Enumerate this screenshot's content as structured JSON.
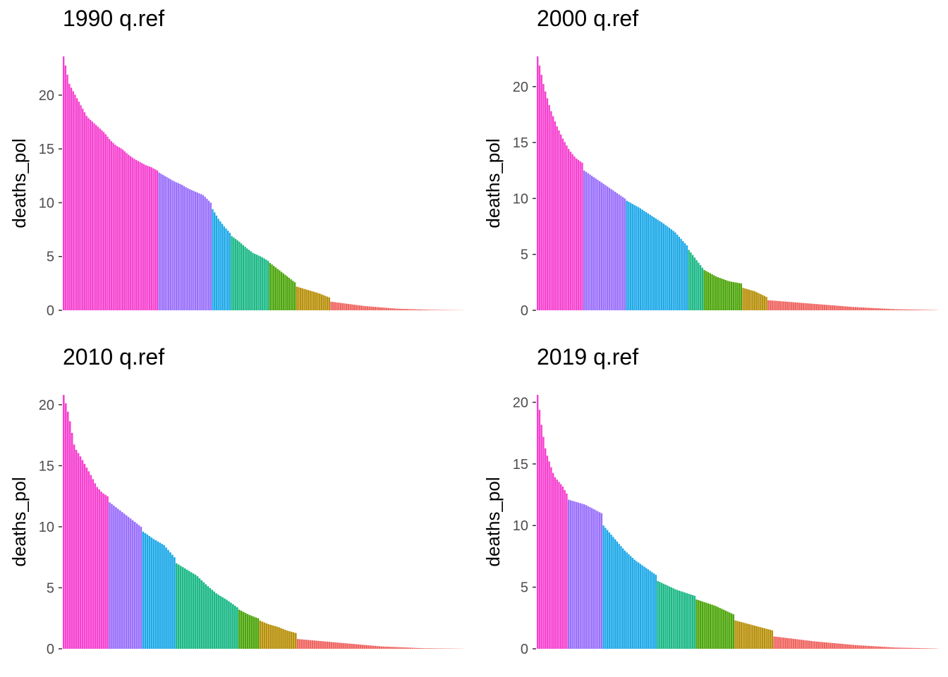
{
  "chart_data": [
    {
      "type": "bar",
      "title": "1990 q.ref",
      "ylabel": "deaths_pol",
      "ylim": [
        0,
        23.6
      ],
      "yticks": [
        0,
        5,
        10,
        15,
        20
      ],
      "grid": false,
      "legend": "none",
      "group_colors": [
        "#F641D0",
        "#9A70FC",
        "#1EA9E8",
        "#1BB886",
        "#4CA50A",
        "#B8900A",
        "#EF6460"
      ],
      "anchors": [
        {
          "group": 0,
          "values": [
            23.6,
            21.0,
            20.0,
            19.0,
            18.0,
            17.5,
            17.0,
            16.5,
            15.8,
            15.3,
            15.0,
            14.5,
            14.1,
            13.8,
            13.5,
            13.3,
            13.0
          ]
        },
        {
          "group": 1,
          "values": [
            12.8,
            12.4,
            12.0,
            11.7,
            11.3,
            11.0,
            10.7,
            10.0
          ]
        },
        {
          "group": 2,
          "values": [
            9.4,
            8.5,
            7.8,
            7.2
          ]
        },
        {
          "group": 3,
          "values": [
            6.9,
            6.4,
            5.8,
            5.3,
            5.0,
            4.6
          ]
        },
        {
          "group": 4,
          "values": [
            4.4,
            3.8,
            3.2,
            2.6
          ]
        },
        {
          "group": 5,
          "values": [
            2.2,
            1.9,
            1.6,
            1.2
          ]
        },
        {
          "group": 6,
          "values": [
            0.8,
            0.4,
            0.15,
            0.05,
            0.01
          ]
        }
      ],
      "group_counts": [
        50,
        28,
        10,
        20,
        14,
        18,
        70
      ]
    },
    {
      "type": "bar",
      "title": "2000 q.ref",
      "ylabel": "deaths_pol",
      "ylim": [
        0,
        22.7
      ],
      "yticks": [
        0,
        5,
        10,
        15,
        20
      ],
      "grid": false,
      "legend": "none",
      "group_colors": [
        "#F641D0",
        "#9A70FC",
        "#1EA9E8",
        "#1BB886",
        "#4CA50A",
        "#B8900A",
        "#EF6460"
      ],
      "anchors": [
        {
          "group": 0,
          "values": [
            22.7,
            20.0,
            18.0,
            16.5,
            15.3,
            14.3,
            13.6,
            13.2
          ]
        },
        {
          "group": 1,
          "values": [
            12.5,
            12.0,
            11.5,
            11.0,
            10.5,
            10.0
          ]
        },
        {
          "group": 2,
          "values": [
            9.8,
            9.2,
            8.5,
            7.8,
            7.0,
            5.8
          ]
        },
        {
          "group": 3,
          "values": [
            5.4,
            4.6,
            3.8
          ]
        },
        {
          "group": 4,
          "values": [
            3.6,
            3.0,
            2.6,
            2.4
          ]
        },
        {
          "group": 5,
          "values": [
            2.0,
            1.7,
            1.2
          ]
        },
        {
          "group": 6,
          "values": [
            0.9,
            0.6,
            0.3,
            0.1,
            0.02
          ]
        }
      ],
      "group_counts": [
        24,
        22,
        32,
        8,
        20,
        13,
        88
      ]
    },
    {
      "type": "bar",
      "title": "2010 q.ref",
      "ylabel": "deaths_pol",
      "ylim": [
        0,
        20.8
      ],
      "yticks": [
        0,
        5,
        10,
        15,
        20
      ],
      "grid": false,
      "legend": "none",
      "group_colors": [
        "#F641D0",
        "#9A70FC",
        "#1EA9E8",
        "#1BB886",
        "#4CA50A",
        "#B8900A",
        "#EF6460"
      ],
      "anchors": [
        {
          "group": 0,
          "values": [
            20.8,
            19.0,
            16.5,
            15.8,
            15.0,
            14.2,
            13.3,
            12.8,
            12.5
          ]
        },
        {
          "group": 1,
          "values": [
            12.0,
            11.5,
            11.0,
            10.5,
            10.0
          ]
        },
        {
          "group": 2,
          "values": [
            9.6,
            9.0,
            8.5,
            7.5
          ]
        },
        {
          "group": 3,
          "values": [
            7.0,
            6.5,
            6.0,
            5.2,
            4.5,
            4.0,
            3.4
          ]
        },
        {
          "group": 4,
          "values": [
            3.2,
            2.8,
            2.5
          ]
        },
        {
          "group": 5,
          "values": [
            2.3,
            2.0,
            1.8,
            1.5,
            1.3
          ]
        },
        {
          "group": 6,
          "values": [
            0.8,
            0.5,
            0.2,
            0.05,
            0.01
          ]
        }
      ],
      "group_counts": [
        22,
        16,
        16,
        30,
        10,
        18,
        80
      ]
    },
    {
      "type": "bar",
      "title": "2019 q.ref",
      "ylabel": "deaths_pol",
      "ylim": [
        0,
        20.6
      ],
      "yticks": [
        0,
        5,
        10,
        15,
        20
      ],
      "grid": false,
      "legend": "none",
      "group_colors": [
        "#F641D0",
        "#9A70FC",
        "#1EA9E8",
        "#1BB886",
        "#4CA50A",
        "#B8900A",
        "#EF6460"
      ],
      "anchors": [
        {
          "group": 0,
          "values": [
            20.6,
            18.0,
            16.0,
            15.0,
            14.0,
            13.6,
            13.2,
            12.6
          ]
        },
        {
          "group": 1,
          "values": [
            12.1,
            11.7,
            11.0
          ]
        },
        {
          "group": 2,
          "values": [
            10.0,
            9.0,
            8.0,
            7.2,
            6.6,
            6.0
          ]
        },
        {
          "group": 3,
          "values": [
            5.5,
            4.8,
            4.3
          ]
        },
        {
          "group": 4,
          "values": [
            4.0,
            3.5,
            2.8
          ]
        },
        {
          "group": 5,
          "values": [
            2.3,
            1.9,
            1.5
          ]
        },
        {
          "group": 6,
          "values": [
            1.0,
            0.6,
            0.3,
            0.1,
            0.02
          ]
        }
      ],
      "group_counts": [
        16,
        18,
        28,
        20,
        20,
        20,
        85
      ]
    }
  ]
}
